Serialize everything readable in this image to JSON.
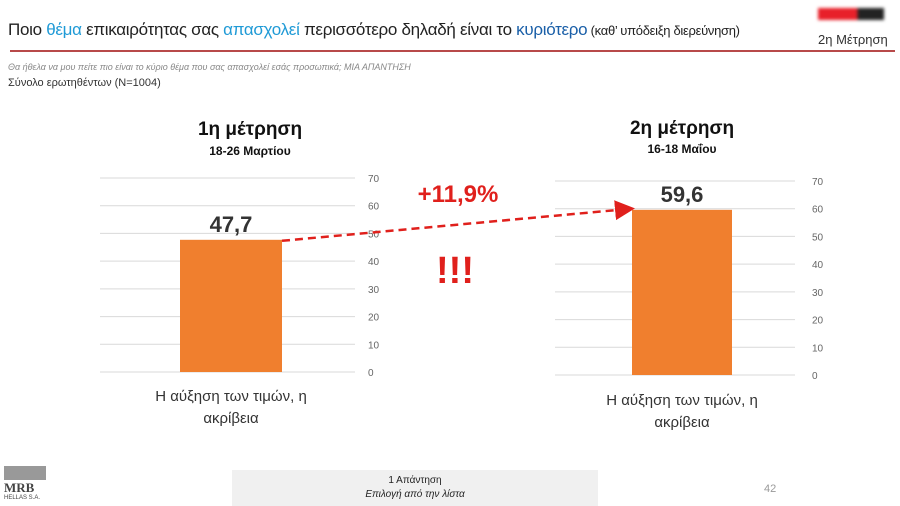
{
  "header": {
    "title_parts": [
      "Ποιο ",
      "θέμα",
      " επικαιρότητας σας ",
      "απασχολεί",
      " περισσότερο δηλαδή είναι το ",
      "κυριότερο",
      " (καθ’ υπόδειξη διερεύνηση)"
    ],
    "wave_label": "2η Μέτρηση",
    "question": "Θα ήθελα να μου πείτε πιο είναι το κύριο θέμα  που σας απασχολεί εσάς προσωπικά;    ΜΙΑ ΑΠΑΝΤΗΣΗ",
    "base": "Σύνολο ερωτηθέντων (N=1004)"
  },
  "colors": {
    "bar": "#f07f2e",
    "accent": "#e0201c",
    "grid": "#d9d9d9"
  },
  "chart_data": [
    {
      "type": "bar",
      "title": "1η μέτρηση",
      "subtitle": "18-26 Μαρτίου",
      "categories": [
        "Η αύξηση των τιμών, η ακρίβεια"
      ],
      "category_lines": [
        "Η αύξηση των τιμών, η",
        "ακρίβεια"
      ],
      "values": [
        47.7
      ],
      "value_labels": [
        "47,7"
      ],
      "ylim": [
        0,
        70
      ],
      "yticks": [
        0,
        10,
        20,
        30,
        40,
        50,
        60,
        70
      ]
    },
    {
      "type": "bar",
      "title": "2η μέτρηση",
      "subtitle": "16-18 Μαΐου",
      "categories": [
        "Η αύξηση των τιμών, η ακρίβεια"
      ],
      "category_lines": [
        "Η αύξηση των τιμών, η",
        "ακρίβεια"
      ],
      "values": [
        59.6
      ],
      "value_labels": [
        "59,6"
      ],
      "ylim": [
        0,
        70
      ],
      "yticks": [
        0,
        10,
        20,
        30,
        40,
        50,
        60,
        70
      ]
    }
  ],
  "annotation": {
    "change": "+11,9%",
    "exclaim": "!!!"
  },
  "footer": {
    "line1": "1 Απάντηση",
    "line2": "Επιλογή από την λίστα",
    "page": "42",
    "logo": "MRB",
    "logo_sub": "HELLAS S.A."
  }
}
